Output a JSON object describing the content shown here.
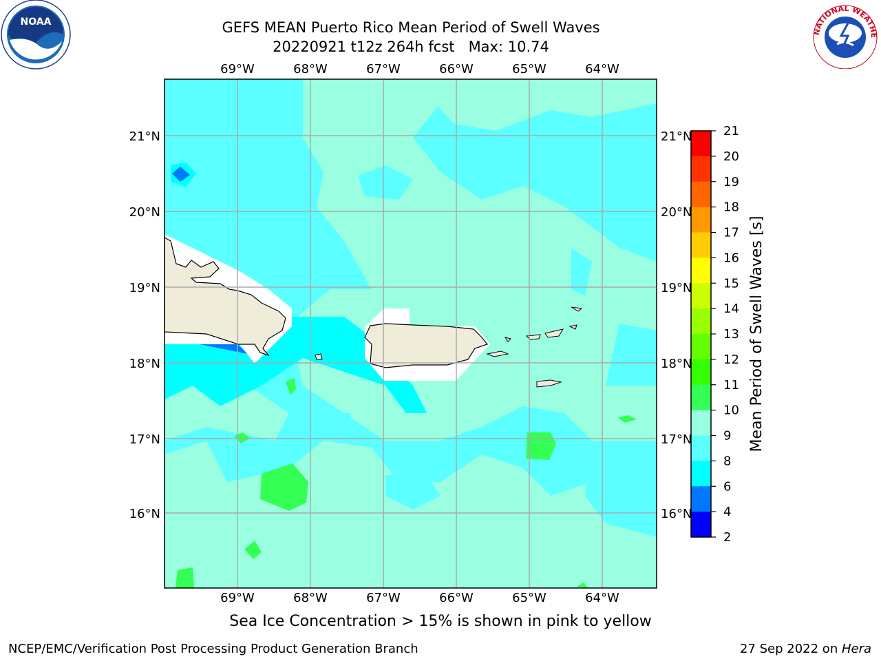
{
  "header": {
    "title_line1": "GEFS MEAN Puerto Rico Mean Period of Swell Waves",
    "title_line2": "20220921 t12z 264h fcst",
    "max_label": "Max: 10.74"
  },
  "logos": {
    "left": {
      "name": "noaa-logo",
      "text": "NOAA"
    },
    "right": {
      "name": "nws-logo",
      "text": "NATIONAL WEATHER SERVICE"
    }
  },
  "map": {
    "lon_labels": [
      "69°W",
      "68°W",
      "67°W",
      "66°W",
      "65°W",
      "64°W"
    ],
    "lat_labels": [
      "21°N",
      "20°N",
      "19°N",
      "18°N",
      "17°N",
      "16°N"
    ],
    "lat_labels_right": [
      "21°N",
      "20°N",
      "19°N",
      "18°N",
      "17°N",
      "16°N"
    ]
  },
  "colorbar": {
    "label": "Mean Period of Swell Waves [s]",
    "ticks": [
      "21",
      "20",
      "19",
      "18",
      "17",
      "16",
      "15",
      "14",
      "13",
      "12",
      "11",
      "10",
      "9",
      "8",
      "6",
      "4",
      "2"
    ],
    "colors": [
      "#ff0000",
      "#ff3300",
      "#ff6600",
      "#ff9900",
      "#ffcc00",
      "#ffff00",
      "#ccff00",
      "#99ff00",
      "#66ff00",
      "#33ff00",
      "#33ff55",
      "#99ffe0",
      "#5cffff",
      "#00ffff",
      "#0077ff",
      "#0000ff"
    ],
    "palette": {
      "cyan": "#5cffff",
      "aqua": "#99ffe0",
      "bright_cyan": "#00ffff",
      "blue": "#0077ff",
      "green": "#33ff55",
      "land": "#efedda"
    }
  },
  "footer": {
    "note": "Sea Ice Concentration > 15% is shown in pink to yellow",
    "left": "NCEP/EMC/Verification Post Processing Product Generation Branch",
    "right_date": "27 Sep 2022 on ",
    "right_host": "Hera"
  }
}
